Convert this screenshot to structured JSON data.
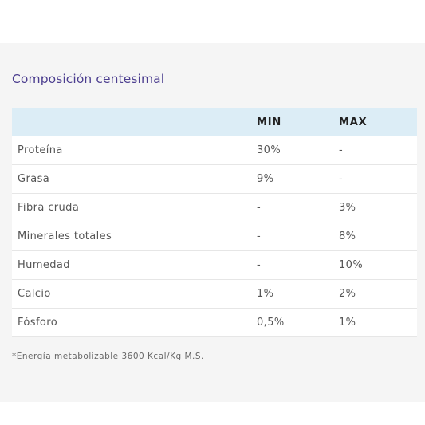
{
  "title": "Composición centesimal",
  "table": {
    "headers": [
      "",
      "MIN",
      "MAX"
    ],
    "rows": [
      [
        "Proteína",
        "30%",
        "-"
      ],
      [
        "Grasa",
        "9%",
        "-"
      ],
      [
        "Fibra cruda",
        "-",
        "3%"
      ],
      [
        "Minerales totales",
        "-",
        "8%"
      ],
      [
        "Humedad",
        "-",
        "10%"
      ],
      [
        "Calcio",
        "1%",
        "2%"
      ],
      [
        "Fósforo",
        "0,5%",
        "1%"
      ]
    ]
  },
  "footnote": "*Energía metabolizable 3600 Kcal/Kg M.S.",
  "colors": {
    "title": "#4b3d8f",
    "header_background": "#dcedf6",
    "panel_background": "#f5f5f5"
  }
}
